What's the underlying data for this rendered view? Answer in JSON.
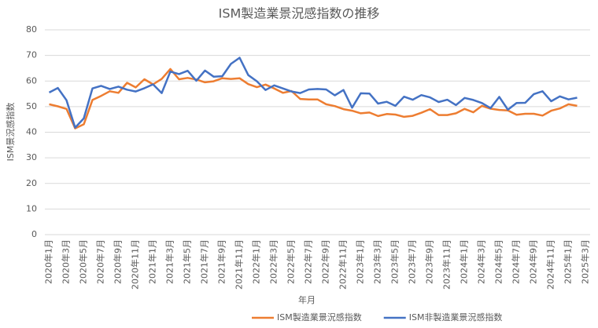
{
  "chart_data": {
    "type": "line",
    "title": "ISM製造業景況感指数の推移",
    "x_label": "年月",
    "y_label": "ISM景況感指数",
    "categories": [
      "2020年1月",
      null,
      "2020年3月",
      null,
      "2020年5月",
      null,
      "2020年7月",
      null,
      "2020年9月",
      null,
      "2020年11月",
      null,
      "2021年1月",
      null,
      "2021年3月",
      null,
      "2021年5月",
      null,
      "2021年7月",
      null,
      "2021年9月",
      null,
      "2021年11月",
      null,
      "2022年1月",
      null,
      "2022年3月",
      null,
      "2022年5月",
      null,
      "2022年7月",
      null,
      "2022年9月",
      null,
      "2022年11月",
      null,
      "2023年1月",
      null,
      "2023年3月",
      null,
      "2023年5月",
      null,
      "2023年7月",
      null,
      "2023年9月",
      null,
      "2023年11月",
      null,
      "2024年1月",
      null,
      "2024年3月",
      null,
      "2024年5月",
      null,
      "2024年7月",
      null,
      "2024年9月",
      null,
      "2024年11月",
      null,
      "2025年1月",
      null,
      "2025年3月"
    ],
    "series": [
      {
        "name": "ISM製造業景況感指数",
        "color": "#ed7d31",
        "values": [
          50.9,
          50.1,
          49.1,
          41.5,
          43.1,
          52.6,
          54.2,
          56.0,
          55.4,
          59.3,
          57.5,
          60.7,
          58.7,
          60.8,
          64.7,
          60.7,
          61.2,
          60.6,
          59.5,
          59.9,
          61.1,
          60.8,
          61.1,
          58.8,
          57.6,
          58.6,
          57.1,
          55.4,
          56.1,
          53.0,
          52.8,
          52.8,
          50.9,
          50.2,
          49.0,
          48.4,
          47.4,
          47.7,
          46.3,
          47.1,
          46.9,
          46.0,
          46.4,
          47.6,
          49.0,
          46.7,
          46.7,
          47.4,
          49.1,
          47.8,
          50.3,
          49.2,
          48.7,
          48.5,
          46.8,
          47.2,
          47.2,
          46.5,
          48.4,
          49.3,
          50.9,
          50.3,
          null
        ]
      },
      {
        "name": "ISM非製造業景況感指数",
        "color": "#4472c4",
        "values": [
          55.5,
          57.3,
          52.5,
          41.8,
          45.4,
          57.1,
          58.1,
          56.9,
          57.8,
          56.6,
          55.9,
          57.2,
          58.7,
          55.3,
          63.7,
          62.7,
          64.0,
          60.1,
          64.1,
          61.7,
          61.9,
          66.7,
          69.1,
          62.3,
          59.9,
          56.5,
          58.3,
          57.1,
          55.9,
          55.3,
          56.7,
          56.9,
          56.7,
          54.4,
          56.5,
          49.6,
          55.2,
          55.1,
          51.2,
          51.9,
          50.3,
          53.9,
          52.7,
          54.5,
          53.6,
          51.8,
          52.7,
          50.6,
          53.4,
          52.6,
          51.4,
          49.4,
          53.8,
          48.8,
          51.4,
          51.5,
          54.9,
          56.0,
          52.1,
          54.0,
          52.8,
          53.5,
          null
        ]
      }
    ],
    "ylim": [
      0,
      80
    ],
    "yticks": [
      0,
      10,
      20,
      30,
      40,
      50,
      60,
      70,
      80
    ],
    "grid": true,
    "legend": "bottom"
  }
}
